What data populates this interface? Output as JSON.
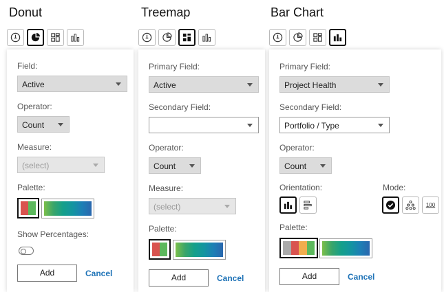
{
  "donut": {
    "title": "Donut",
    "field_label": "Field:",
    "field_value": "Active",
    "operator_label": "Operator:",
    "operator_value": "Count",
    "measure_label": "Measure:",
    "measure_value": "(select)",
    "palette_label": "Palette:",
    "show_percentages_label": "Show Percentages:",
    "add_label": "Add",
    "cancel_label": "Cancel"
  },
  "treemap": {
    "title": "Treemap",
    "primary_label": "Primary Field:",
    "primary_value": "Active",
    "secondary_label": "Secondary Field:",
    "secondary_value": "",
    "operator_label": "Operator:",
    "operator_value": "Count",
    "measure_label": "Measure:",
    "measure_value": "(select)",
    "palette_label": "Palette:",
    "add_label": "Add",
    "cancel_label": "Cancel"
  },
  "bar": {
    "title": "Bar Chart",
    "primary_label": "Primary Field:",
    "primary_value": "Project Health",
    "secondary_label": "Secondary Field:",
    "secondary_value": "Portfolio / Type",
    "operator_label": "Operator:",
    "operator_value": "Count",
    "orientation_label": "Orientation:",
    "mode_label": "Mode:",
    "mode_percent_text": "100",
    "palette_label": "Palette:",
    "add_label": "Add",
    "cancel_label": "Cancel"
  },
  "palettes": {
    "categorical_donut": [
      "#d9534f",
      "#5cb85c"
    ],
    "categorical_bar": [
      "#aaaaaa",
      "#d9534f",
      "#f0ad4e",
      "#5cb85c"
    ],
    "sequential": [
      "#7cbf4a",
      "#3aa56a",
      "#14a08a",
      "#1395a0",
      "#1d7fb5",
      "#2a67ae"
    ]
  },
  "colors": {
    "link": "#1f73b7"
  }
}
